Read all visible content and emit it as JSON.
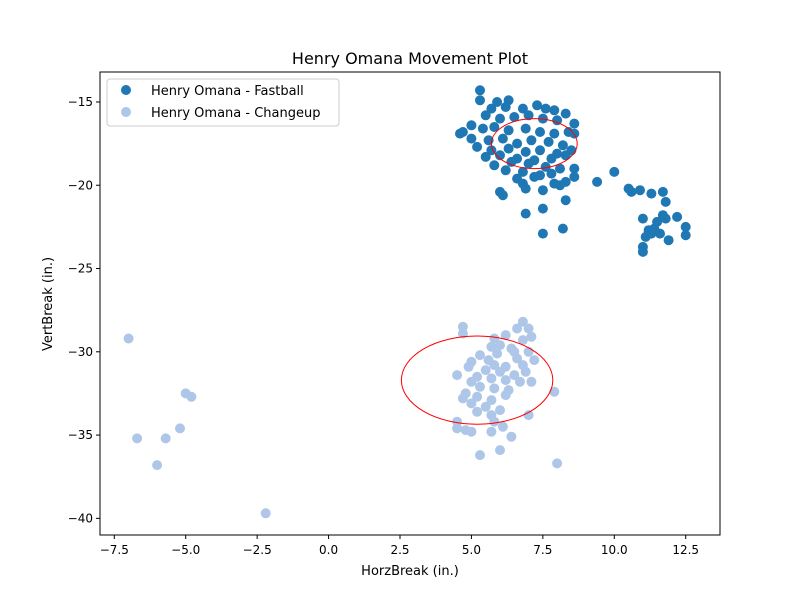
{
  "chart_data": {
    "type": "scatter",
    "title": "Henry Omana Movement Plot",
    "xlabel": "HorzBreak (in.)",
    "ylabel": "VertBreak (in.)",
    "xlim": [
      -8.0,
      13.7
    ],
    "ylim": [
      -41.0,
      -13.2
    ],
    "y_inverted": true,
    "xticks": [
      -7.5,
      -5.0,
      -2.5,
      0.0,
      2.5,
      5.0,
      7.5,
      10.0,
      12.5
    ],
    "xtick_labels": [
      "−7.5",
      "−5.0",
      "−2.5",
      "0.0",
      "2.5",
      "5.0",
      "7.5",
      "10.0",
      "12.5"
    ],
    "yticks": [
      -15,
      -20,
      -25,
      -30,
      -35,
      -40
    ],
    "ytick_labels": [
      "−15",
      "−20",
      "−25",
      "−30",
      "−35",
      "−40"
    ],
    "grid": false,
    "legend_position": "top-left",
    "series": [
      {
        "name": "Henry Omana - Fastball",
        "color": "#1f77b4",
        "points": [
          [
            5.3,
            -14.3
          ],
          [
            5.9,
            -15.0
          ],
          [
            6.3,
            -14.9
          ],
          [
            7.3,
            -15.2
          ],
          [
            7.6,
            -15.4
          ],
          [
            5.3,
            -14.9
          ],
          [
            5.7,
            -15.4
          ],
          [
            6.2,
            -15.3
          ],
          [
            6.8,
            -15.4
          ],
          [
            7.9,
            -15.5
          ],
          [
            8.3,
            -15.7
          ],
          [
            5.5,
            -15.8
          ],
          [
            6.0,
            -16.0
          ],
          [
            6.5,
            -15.9
          ],
          [
            7.0,
            -15.8
          ],
          [
            7.5,
            -16.0
          ],
          [
            8.0,
            -16.1
          ],
          [
            8.6,
            -16.3
          ],
          [
            5.0,
            -16.4
          ],
          [
            5.4,
            -16.6
          ],
          [
            5.8,
            -16.5
          ],
          [
            6.3,
            -16.7
          ],
          [
            6.9,
            -16.6
          ],
          [
            7.4,
            -16.8
          ],
          [
            7.9,
            -16.9
          ],
          [
            8.4,
            -16.8
          ],
          [
            8.6,
            -16.9
          ],
          [
            4.6,
            -16.9
          ],
          [
            4.7,
            -16.8
          ],
          [
            5.0,
            -17.2
          ],
          [
            5.6,
            -17.3
          ],
          [
            6.1,
            -17.2
          ],
          [
            6.6,
            -17.5
          ],
          [
            7.1,
            -17.3
          ],
          [
            7.7,
            -17.4
          ],
          [
            8.2,
            -17.6
          ],
          [
            8.5,
            -17.9
          ],
          [
            5.2,
            -17.7
          ],
          [
            5.7,
            -17.9
          ],
          [
            6.3,
            -17.8
          ],
          [
            6.9,
            -18.0
          ],
          [
            7.4,
            -17.9
          ],
          [
            8.0,
            -18.1
          ],
          [
            5.5,
            -18.3
          ],
          [
            6.0,
            -18.2
          ],
          [
            6.6,
            -18.4
          ],
          [
            7.2,
            -18.5
          ],
          [
            7.8,
            -18.4
          ],
          [
            8.3,
            -18.2
          ],
          [
            5.8,
            -18.8
          ],
          [
            6.4,
            -18.6
          ],
          [
            7.0,
            -18.7
          ],
          [
            7.6,
            -18.9
          ],
          [
            8.1,
            -19.0
          ],
          [
            6.2,
            -19.1
          ],
          [
            6.8,
            -19.2
          ],
          [
            7.4,
            -19.4
          ],
          [
            8.6,
            -19.0
          ],
          [
            6.6,
            -19.6
          ],
          [
            7.2,
            -19.5
          ],
          [
            7.8,
            -19.3
          ],
          [
            8.6,
            -19.5
          ],
          [
            6.8,
            -19.9
          ],
          [
            7.9,
            -19.9
          ],
          [
            8.1,
            -20.0
          ],
          [
            8.3,
            -19.8
          ],
          [
            6.9,
            -20.2
          ],
          [
            7.5,
            -20.3
          ],
          [
            6.0,
            -20.4
          ],
          [
            6.1,
            -20.6
          ],
          [
            8.3,
            -20.9
          ],
          [
            7.5,
            -21.4
          ],
          [
            6.9,
            -21.7
          ],
          [
            8.2,
            -22.6
          ],
          [
            7.5,
            -22.9
          ],
          [
            9.4,
            -19.8
          ],
          [
            10.0,
            -19.2
          ],
          [
            10.5,
            -20.2
          ],
          [
            10.6,
            -20.4
          ],
          [
            10.9,
            -20.3
          ],
          [
            11.3,
            -20.5
          ],
          [
            11.7,
            -20.4
          ],
          [
            11.8,
            -21.0
          ],
          [
            12.2,
            -21.9
          ],
          [
            11.7,
            -21.8
          ],
          [
            11.8,
            -22.0
          ],
          [
            11.5,
            -22.2
          ],
          [
            11.4,
            -22.6
          ],
          [
            11.2,
            -22.7
          ],
          [
            11.3,
            -22.9
          ],
          [
            11.1,
            -23.1
          ],
          [
            11.0,
            -22.0
          ],
          [
            11.0,
            -23.7
          ],
          [
            11.0,
            -24.0
          ],
          [
            11.9,
            -23.3
          ],
          [
            11.6,
            -22.9
          ],
          [
            12.5,
            -22.5
          ],
          [
            12.5,
            -23.0
          ]
        ]
      },
      {
        "name": "Henry Omana - Changeup",
        "color": "#aec7e8",
        "points": [
          [
            -7.0,
            -29.2
          ],
          [
            -6.7,
            -35.2
          ],
          [
            -6.0,
            -36.8
          ],
          [
            -5.7,
            -35.2
          ],
          [
            -5.2,
            -34.6
          ],
          [
            -5.0,
            -32.5
          ],
          [
            -4.8,
            -32.7
          ],
          [
            -2.2,
            -39.7
          ],
          [
            4.7,
            -28.5
          ],
          [
            4.7,
            -28.9
          ],
          [
            5.8,
            -29.2
          ],
          [
            6.0,
            -29.6
          ],
          [
            6.2,
            -29.0
          ],
          [
            6.6,
            -28.6
          ],
          [
            6.8,
            -28.2
          ],
          [
            7.0,
            -28.6
          ],
          [
            7.1,
            -29.1
          ],
          [
            6.8,
            -29.3
          ],
          [
            5.7,
            -29.7
          ],
          [
            6.4,
            -29.8
          ],
          [
            5.9,
            -30.1
          ],
          [
            6.6,
            -30.4
          ],
          [
            7.0,
            -30.0
          ],
          [
            6.5,
            -30.0
          ],
          [
            5.3,
            -30.2
          ],
          [
            5.6,
            -30.5
          ],
          [
            5.0,
            -30.6
          ],
          [
            4.9,
            -30.9
          ],
          [
            5.8,
            -30.8
          ],
          [
            6.2,
            -30.9
          ],
          [
            6.8,
            -30.8
          ],
          [
            7.2,
            -30.5
          ],
          [
            5.5,
            -31.1
          ],
          [
            6.0,
            -31.2
          ],
          [
            6.5,
            -31.4
          ],
          [
            6.9,
            -31.2
          ],
          [
            5.2,
            -31.5
          ],
          [
            5.7,
            -31.6
          ],
          [
            6.2,
            -31.7
          ],
          [
            6.7,
            -31.8
          ],
          [
            7.1,
            -31.8
          ],
          [
            4.5,
            -31.4
          ],
          [
            5.0,
            -31.8
          ],
          [
            5.3,
            -32.1
          ],
          [
            5.8,
            -32.2
          ],
          [
            6.3,
            -32.3
          ],
          [
            4.8,
            -32.5
          ],
          [
            5.2,
            -32.7
          ],
          [
            5.7,
            -32.9
          ],
          [
            6.2,
            -32.6
          ],
          [
            4.7,
            -32.8
          ],
          [
            5.0,
            -33.1
          ],
          [
            5.5,
            -33.3
          ],
          [
            6.0,
            -33.5
          ],
          [
            5.2,
            -33.6
          ],
          [
            5.7,
            -33.8
          ],
          [
            7.0,
            -33.8
          ],
          [
            4.5,
            -34.2
          ],
          [
            4.5,
            -34.6
          ],
          [
            4.8,
            -34.7
          ],
          [
            5.0,
            -34.8
          ],
          [
            5.8,
            -34.2
          ],
          [
            6.1,
            -34.5
          ],
          [
            5.7,
            -34.8
          ],
          [
            6.4,
            -35.1
          ],
          [
            6.0,
            -35.9
          ],
          [
            5.3,
            -36.2
          ],
          [
            7.9,
            -32.4
          ],
          [
            8.0,
            -36.7
          ]
        ]
      }
    ],
    "ellipses": [
      {
        "for": "Henry Omana - Fastball",
        "center": [
          7.2,
          -17.5
        ],
        "width": 3.0,
        "height": 3.0,
        "color": "#ff0000"
      },
      {
        "for": "Henry Omana - Changeup",
        "center": [
          5.2,
          -31.7
        ],
        "width": 5.3,
        "height": 5.3,
        "color": "#ff0000"
      }
    ]
  }
}
